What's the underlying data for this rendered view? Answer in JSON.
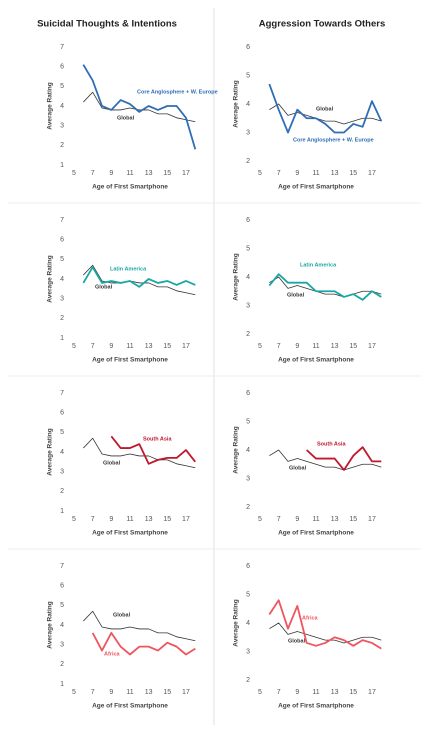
{
  "column_titles": [
    "Suicidal Thoughts & Intentions",
    "Aggression Towards Others"
  ],
  "chart_data": [
    {
      "type": "line",
      "xlabel": "Age of First Smartphone",
      "ylabel": "Average Rating",
      "x": [
        6,
        7,
        8,
        9,
        10,
        11,
        12,
        13,
        14,
        15,
        16,
        17,
        18
      ],
      "xlim": [
        5,
        18.5
      ],
      "xticks": [
        5,
        7,
        9,
        11,
        13,
        15,
        17
      ],
      "ylim": [
        1,
        7
      ],
      "yticks": [
        1,
        2,
        3,
        4,
        5,
        6,
        7
      ],
      "series": [
        {
          "name": "Global",
          "color": "#333333",
          "values": [
            4.2,
            4.7,
            3.9,
            3.8,
            3.8,
            3.9,
            3.8,
            3.8,
            3.6,
            3.6,
            3.4,
            3.3,
            3.2
          ]
        },
        {
          "name": "Core Anglosphere + W. Europe",
          "color": "#2f6db5",
          "values": [
            6.1,
            5.3,
            4.0,
            3.8,
            4.3,
            4.1,
            3.7,
            4.0,
            3.8,
            4.0,
            4.0,
            3.4,
            1.8
          ]
        }
      ]
    },
    {
      "type": "line",
      "xlabel": "Age of First Smartphone",
      "ylabel": "Average Rating",
      "x": [
        6,
        7,
        8,
        9,
        10,
        11,
        12,
        13,
        14,
        15,
        16,
        17,
        18
      ],
      "xlim": [
        5,
        18.5
      ],
      "xticks": [
        5,
        7,
        9,
        11,
        13,
        15,
        17
      ],
      "ylim": [
        2,
        6
      ],
      "yticks": [
        2,
        3,
        4,
        5,
        6
      ],
      "series": [
        {
          "name": "Global",
          "color": "#333333",
          "values": [
            3.8,
            4.0,
            3.6,
            3.7,
            3.6,
            3.5,
            3.4,
            3.4,
            3.3,
            3.4,
            3.5,
            3.5,
            3.4
          ]
        },
        {
          "name": "Core Anglosphere + W. Europe",
          "color": "#2f6db5",
          "values": [
            4.7,
            3.8,
            3.0,
            3.8,
            3.5,
            3.5,
            3.3,
            3.0,
            3.0,
            3.3,
            3.2,
            4.1,
            3.4
          ]
        }
      ]
    },
    {
      "type": "line",
      "xlabel": "Age of First Smartphone",
      "ylabel": "Average Rating",
      "x": [
        6,
        7,
        8,
        9,
        10,
        11,
        12,
        13,
        14,
        15,
        16,
        17,
        18
      ],
      "xlim": [
        5,
        18.5
      ],
      "xticks": [
        5,
        7,
        9,
        11,
        13,
        15,
        17
      ],
      "ylim": [
        1,
        7
      ],
      "yticks": [
        1,
        2,
        3,
        4,
        5,
        6,
        7
      ],
      "series": [
        {
          "name": "Global",
          "color": "#333333",
          "values": [
            4.2,
            4.7,
            3.9,
            3.8,
            3.8,
            3.9,
            3.8,
            3.8,
            3.6,
            3.6,
            3.4,
            3.3,
            3.2
          ]
        },
        {
          "name": "Latin America",
          "color": "#1aa6a6",
          "values": [
            3.8,
            4.6,
            3.8,
            3.9,
            3.8,
            3.9,
            3.6,
            4.0,
            3.8,
            3.9,
            3.7,
            3.9,
            3.7
          ]
        }
      ]
    },
    {
      "type": "line",
      "xlabel": "Age of First Smartphone",
      "ylabel": "Average Rating",
      "x": [
        6,
        7,
        8,
        9,
        10,
        11,
        12,
        13,
        14,
        15,
        16,
        17,
        18
      ],
      "xlim": [
        5,
        18.5
      ],
      "xticks": [
        5,
        7,
        9,
        11,
        13,
        15,
        17
      ],
      "ylim": [
        2,
        6
      ],
      "yticks": [
        2,
        3,
        4,
        5,
        6
      ],
      "series": [
        {
          "name": "Global",
          "color": "#333333",
          "values": [
            3.8,
            4.0,
            3.6,
            3.7,
            3.6,
            3.5,
            3.4,
            3.4,
            3.3,
            3.4,
            3.5,
            3.5,
            3.4
          ]
        },
        {
          "name": "Latin America",
          "color": "#1aa6a6",
          "values": [
            3.7,
            4.1,
            3.8,
            3.8,
            3.8,
            3.5,
            3.5,
            3.5,
            3.3,
            3.4,
            3.2,
            3.5,
            3.3
          ]
        }
      ]
    },
    {
      "type": "line",
      "xlabel": "Age of First Smartphone",
      "ylabel": "Average Rating",
      "x": [
        6,
        7,
        8,
        9,
        10,
        11,
        12,
        13,
        14,
        15,
        16,
        17,
        18
      ],
      "xlim": [
        5,
        18.5
      ],
      "xticks": [
        5,
        7,
        9,
        11,
        13,
        15,
        17
      ],
      "ylim": [
        1,
        7
      ],
      "yticks": [
        1,
        2,
        3,
        4,
        5,
        6,
        7
      ],
      "series": [
        {
          "name": "Global",
          "color": "#333333",
          "values": [
            4.2,
            4.7,
            3.9,
            3.8,
            3.8,
            3.9,
            3.8,
            3.8,
            3.6,
            3.6,
            3.4,
            3.3,
            3.2
          ]
        },
        {
          "name": "South Asia",
          "color": "#c0172d",
          "values": [
            null,
            null,
            null,
            4.8,
            4.2,
            4.2,
            4.4,
            3.4,
            3.6,
            3.7,
            3.7,
            4.1,
            3.5
          ]
        }
      ]
    },
    {
      "type": "line",
      "xlabel": "Age of First Smartphone",
      "ylabel": "Average Rating",
      "x": [
        6,
        7,
        8,
        9,
        10,
        11,
        12,
        13,
        14,
        15,
        16,
        17,
        18
      ],
      "xlim": [
        5,
        18.5
      ],
      "xticks": [
        5,
        7,
        9,
        11,
        13,
        15,
        17
      ],
      "ylim": [
        2,
        6
      ],
      "yticks": [
        2,
        3,
        4,
        5,
        6
      ],
      "series": [
        {
          "name": "Global",
          "color": "#333333",
          "values": [
            3.8,
            4.0,
            3.6,
            3.7,
            3.6,
            3.5,
            3.4,
            3.4,
            3.3,
            3.4,
            3.5,
            3.5,
            3.4
          ]
        },
        {
          "name": "South Asia",
          "color": "#c0172d",
          "values": [
            null,
            null,
            null,
            null,
            4.0,
            3.7,
            3.7,
            3.7,
            3.3,
            3.8,
            4.1,
            3.6,
            3.6
          ]
        }
      ]
    },
    {
      "type": "line",
      "xlabel": "Age of First Smartphone",
      "ylabel": "Average Rating",
      "x": [
        6,
        7,
        8,
        9,
        10,
        11,
        12,
        13,
        14,
        15,
        16,
        17,
        18
      ],
      "xlim": [
        5,
        18.5
      ],
      "xticks": [
        5,
        7,
        9,
        11,
        13,
        15,
        17
      ],
      "ylim": [
        1,
        7
      ],
      "yticks": [
        1,
        2,
        3,
        4,
        5,
        6,
        7
      ],
      "series": [
        {
          "name": "Global",
          "color": "#333333",
          "values": [
            4.2,
            4.7,
            3.9,
            3.8,
            3.8,
            3.9,
            3.8,
            3.8,
            3.6,
            3.6,
            3.4,
            3.3,
            3.2
          ]
        },
        {
          "name": "Africa",
          "color": "#f0555f",
          "values": [
            null,
            3.6,
            2.7,
            3.6,
            2.9,
            2.5,
            2.9,
            2.9,
            2.7,
            3.1,
            2.9,
            2.5,
            2.8
          ]
        }
      ]
    },
    {
      "type": "line",
      "xlabel": "Age of First Smartphone",
      "ylabel": "Average Rating",
      "x": [
        6,
        7,
        8,
        9,
        10,
        11,
        12,
        13,
        14,
        15,
        16,
        17,
        18
      ],
      "xlim": [
        5,
        18.5
      ],
      "xticks": [
        5,
        7,
        9,
        11,
        13,
        15,
        17
      ],
      "ylim": [
        2,
        6
      ],
      "yticks": [
        2,
        3,
        4,
        5,
        6
      ],
      "series": [
        {
          "name": "Global",
          "color": "#333333",
          "values": [
            3.8,
            4.0,
            3.6,
            3.7,
            3.6,
            3.5,
            3.4,
            3.4,
            3.3,
            3.4,
            3.5,
            3.5,
            3.4
          ]
        },
        {
          "name": "Africa",
          "color": "#f0555f",
          "values": [
            4.3,
            4.8,
            3.8,
            4.6,
            3.3,
            3.2,
            3.3,
            3.5,
            3.4,
            3.2,
            3.4,
            3.3,
            3.1
          ]
        }
      ]
    }
  ]
}
